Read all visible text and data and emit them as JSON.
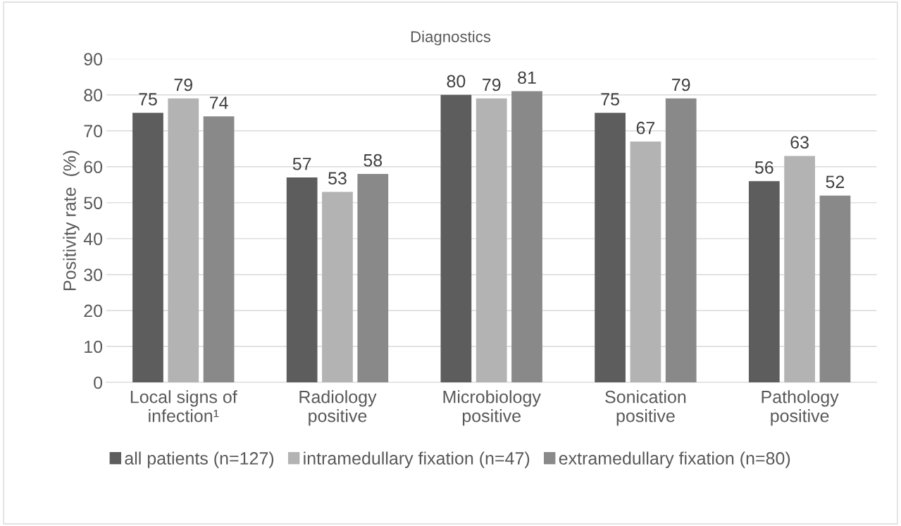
{
  "chart_data": {
    "type": "bar",
    "title": "Diagnostics",
    "ylabel": "Positivity rate  (%)",
    "categories": [
      "Local signs of\ninfection¹",
      "Radiology\npositive",
      "Microbiology\npositive",
      "Sonication\npositive",
      "Pathology\npositive"
    ],
    "series": [
      {
        "name": "all patients (n=127)",
        "color": "#5d5d5d",
        "values": [
          75,
          57,
          80,
          75,
          56
        ]
      },
      {
        "name": "intramedullary fixation (n=47)",
        "color": "#b3b3b3",
        "values": [
          79,
          53,
          79,
          67,
          63
        ]
      },
      {
        "name": "extramedullary fixation (n=80)",
        "color": "#898989",
        "values": [
          74,
          58,
          81,
          79,
          52
        ]
      }
    ],
    "ylim": [
      0,
      90
    ],
    "yticks": [
      0,
      10,
      20,
      30,
      40,
      50,
      60,
      70,
      80,
      90
    ],
    "grid": "y",
    "legend": "bottom",
    "data_labels": true
  }
}
